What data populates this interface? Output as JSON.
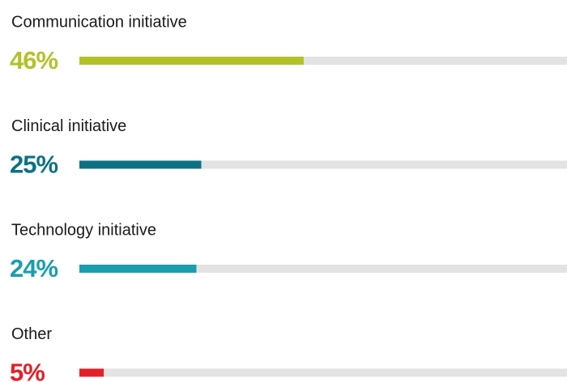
{
  "chart_data": {
    "type": "bar",
    "orientation": "horizontal",
    "categories": [
      "Communication initiative",
      "Clinical initiative",
      "Technology initiative",
      "Other"
    ],
    "values": [
      46,
      25,
      24,
      5
    ],
    "value_labels": [
      "46%",
      "25%",
      "24%",
      "5%"
    ],
    "colors": [
      "#b3c129",
      "#0c7282",
      "#1a9eae",
      "#e2202a"
    ],
    "track_color": "#e3e3e3",
    "xlim": [
      0,
      100
    ]
  }
}
